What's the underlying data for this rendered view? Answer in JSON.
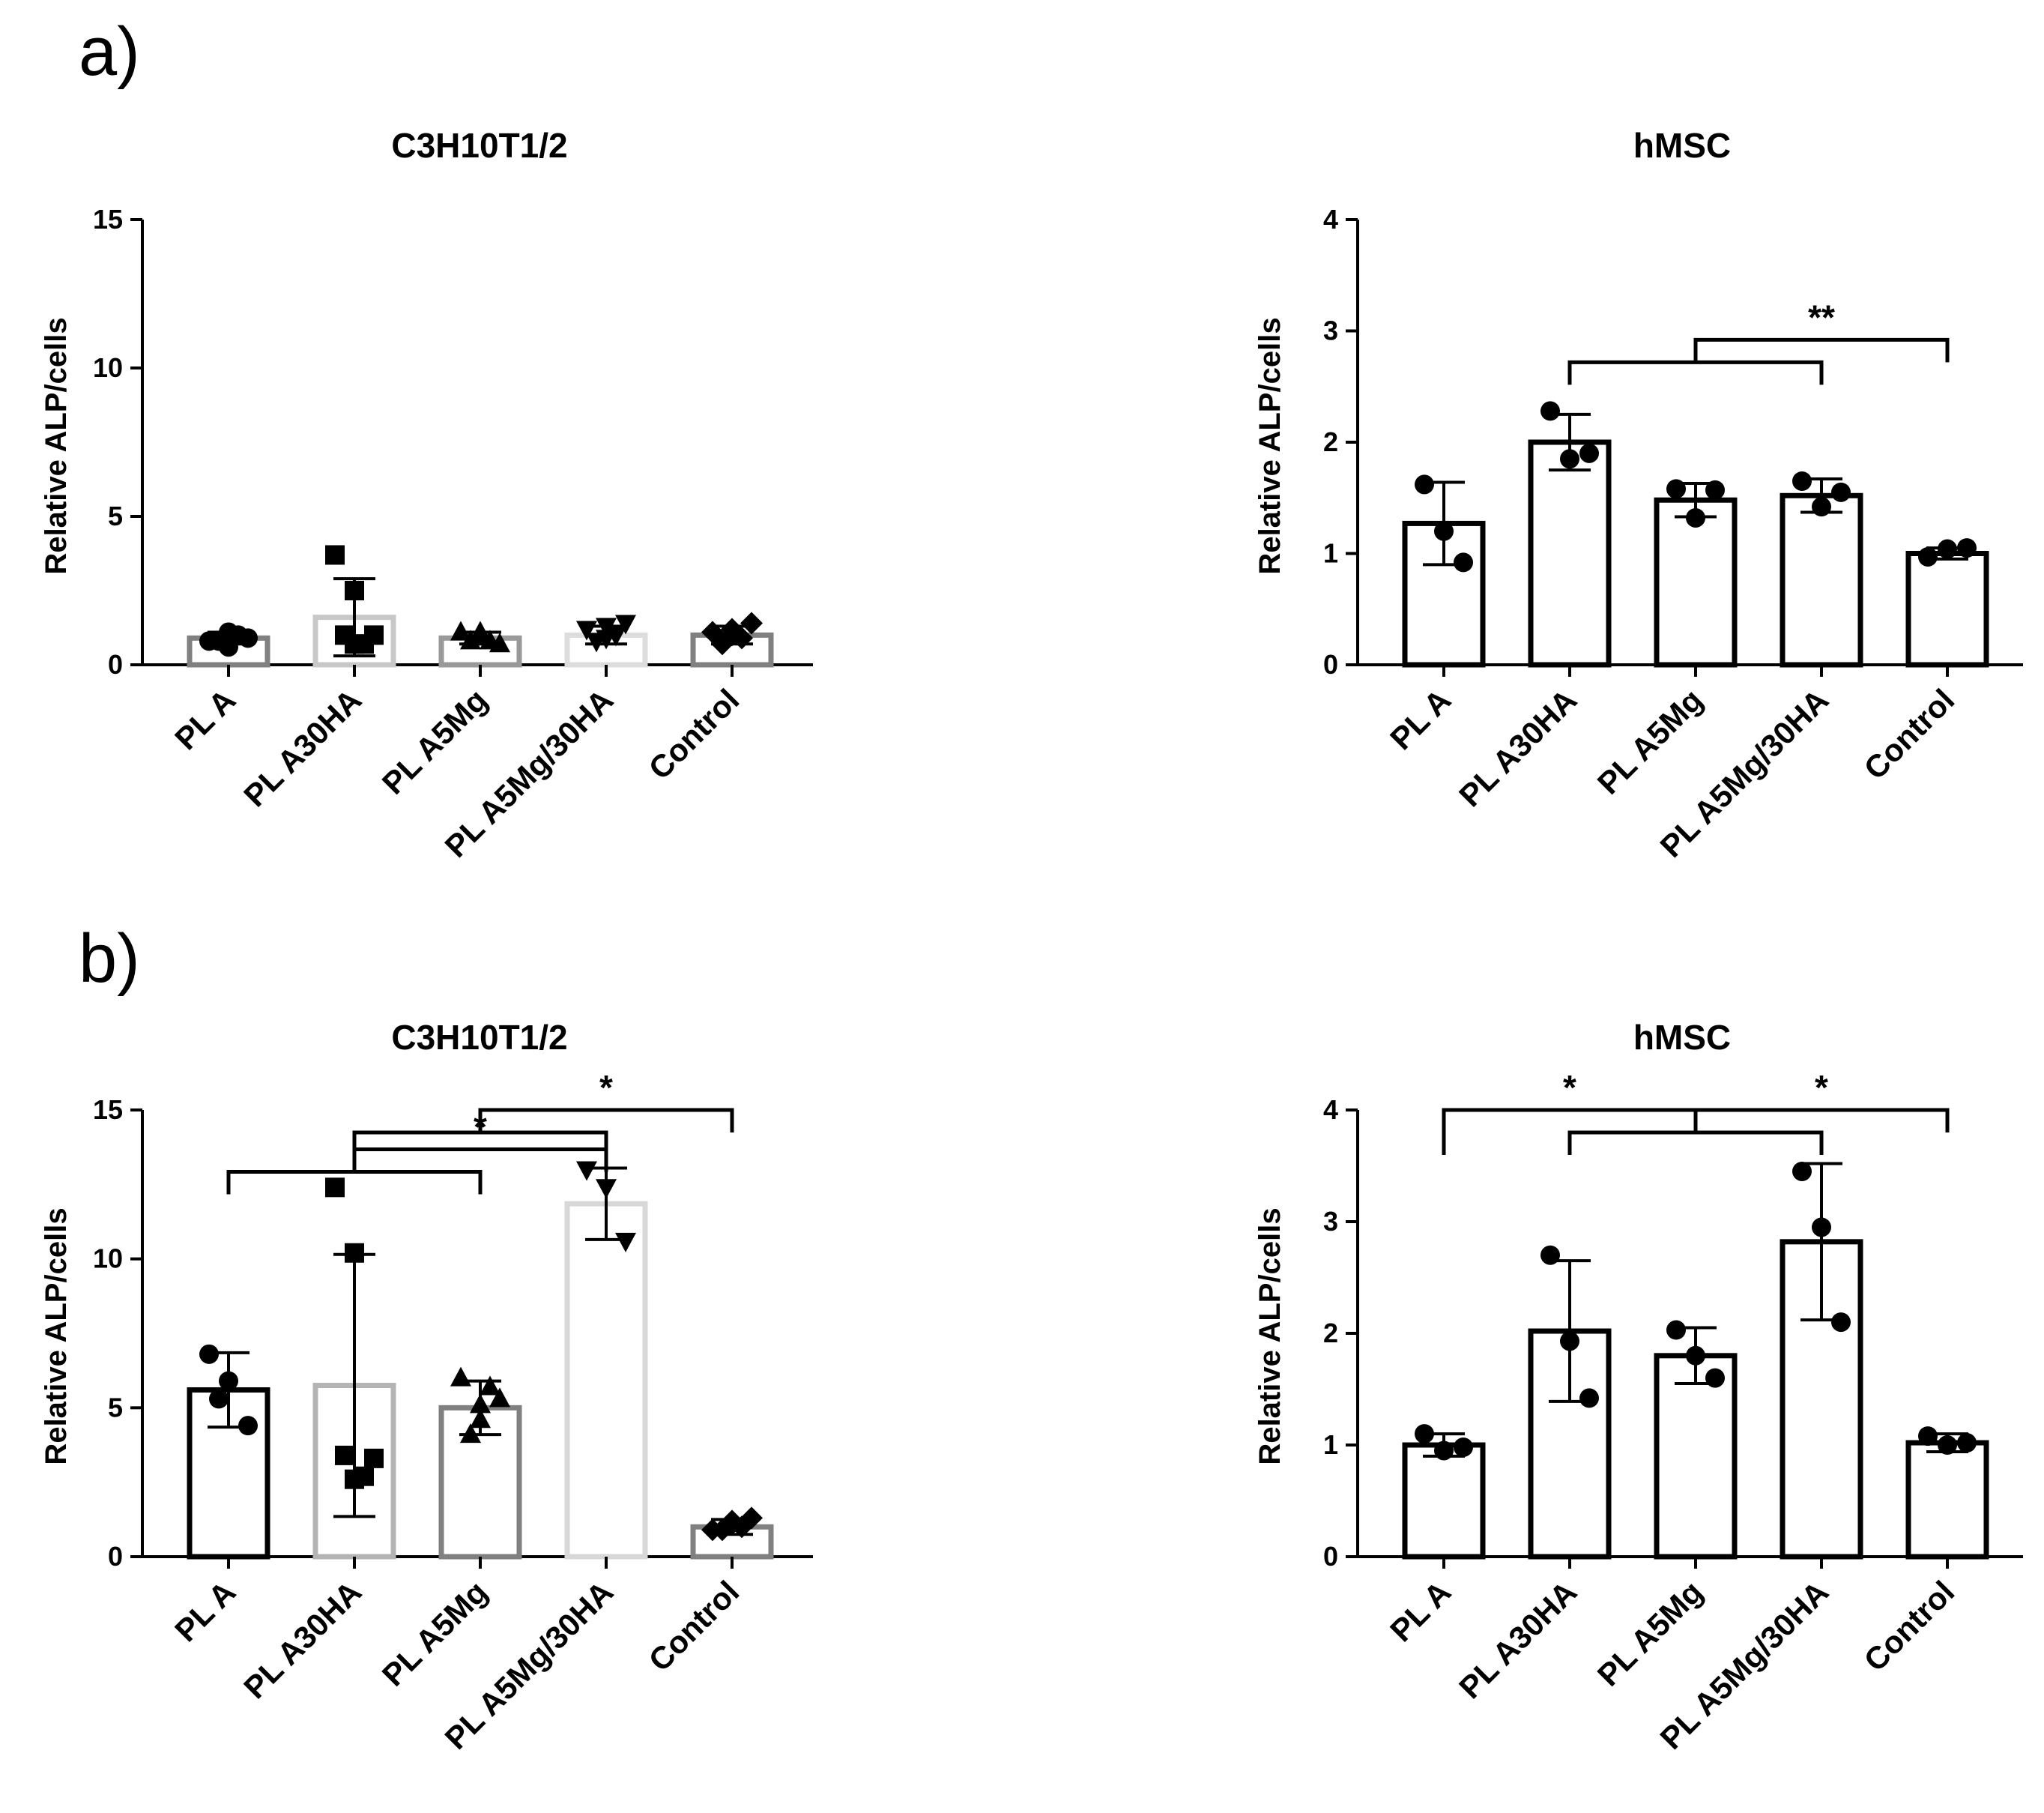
{
  "panels": [
    {
      "label": "a)"
    },
    {
      "label": "b)"
    }
  ],
  "chart_data": [
    {
      "panel": "a)",
      "type": "bar",
      "title": "C3H10T1/2",
      "ylabel": "Relative ALP/cells",
      "xlabel": "",
      "ylim": [
        0,
        15
      ],
      "yticks": [
        0,
        5,
        10,
        15
      ],
      "categories": [
        "PL A",
        "PL A30HA",
        "PL A5Mg",
        "PL A5Mg/30HA",
        "Control"
      ],
      "bar_colors": [
        "#808080",
        "#c8c8c8",
        "#999999",
        "#dddddd",
        "#808080"
      ],
      "markers": [
        "circle",
        "square",
        "triangle-up",
        "triangle-down",
        "diamond"
      ],
      "values": [
        0.9,
        1.6,
        0.9,
        1.0,
        1.0
      ],
      "errors": [
        0.2,
        1.3,
        0.2,
        0.3,
        0.3
      ],
      "points": [
        [
          0.8,
          1.1,
          0.9,
          0.8,
          1.0,
          0.6
        ],
        [
          3.7,
          2.5,
          1.0,
          1.0,
          0.7,
          0.7
        ],
        [
          1.1,
          1.0,
          0.7,
          0.8,
          0.8,
          1.1
        ],
        [
          1.2,
          1.3,
          1.4,
          0.8,
          1.0,
          0.9
        ],
        [
          1.1,
          1.2,
          1.4,
          0.7,
          0.9,
          1.0
        ]
      ],
      "significance": []
    },
    {
      "panel": "a)",
      "type": "bar",
      "title": "hMSC",
      "ylabel": "Relative ALP/cells",
      "xlabel": "",
      "ylim": [
        0,
        4
      ],
      "yticks": [
        0,
        1,
        2,
        3,
        4
      ],
      "categories": [
        "PL A",
        "PL A30HA",
        "PL A5Mg",
        "PL A5Mg/30HA",
        "Control"
      ],
      "bar_colors": [
        "#000000",
        "#000000",
        "#000000",
        "#000000",
        "#000000"
      ],
      "markers": [
        "circle",
        "circle",
        "circle",
        "circle",
        "circle"
      ],
      "values": [
        1.27,
        2.0,
        1.48,
        1.52,
        1.0
      ],
      "errors": [
        0.37,
        0.25,
        0.15,
        0.15,
        0.05
      ],
      "points": [
        [
          1.62,
          1.2,
          0.92
        ],
        [
          2.28,
          1.85,
          1.9
        ],
        [
          1.58,
          1.32,
          1.57
        ],
        [
          1.65,
          1.42,
          1.55
        ],
        [
          0.97,
          1.04,
          1.05
        ]
      ],
      "significance": [
        {
          "label": "**",
          "from": [
            1,
            3
          ],
          "to": [
            4,
            4
          ]
        }
      ]
    },
    {
      "panel": "b)",
      "type": "bar",
      "title": "C3H10T1/2",
      "ylabel": "Relative ALP/cells",
      "xlabel": "",
      "ylim": [
        0,
        15
      ],
      "yticks": [
        0,
        5,
        10,
        15
      ],
      "categories": [
        "PL A",
        "PL A30HA",
        "PL A5Mg",
        "PL A5Mg/30HA",
        "Control"
      ],
      "bar_colors": [
        "#000000",
        "#b4b4b4",
        "#808080",
        "#d8d8d8",
        "#808080"
      ],
      "markers": [
        "circle",
        "square",
        "triangle-up",
        "triangle-down",
        "diamond"
      ],
      "values": [
        5.6,
        5.75,
        5.0,
        11.85,
        1.0
      ],
      "errors": [
        1.25,
        4.4,
        0.9,
        1.2,
        0.25
      ],
      "points": [
        [
          6.8,
          5.9,
          4.4,
          5.3
        ],
        [
          12.4,
          10.2,
          3.3,
          3.4,
          2.7,
          2.6
        ],
        [
          6.0,
          5.1,
          5.3,
          4.1,
          5.7,
          4.6
        ],
        [
          13.0,
          12.4,
          10.6
        ],
        [
          0.9,
          1.2,
          1.3,
          0.9,
          1.0,
          1.1
        ]
      ],
      "significance": [
        {
          "label": "*",
          "from": [
            0,
            2
          ],
          "to": [
            3,
            3
          ]
        },
        {
          "label": "*",
          "from": [
            1,
            3
          ],
          "to": [
            4,
            4
          ]
        }
      ]
    },
    {
      "panel": "b)",
      "type": "bar",
      "title": "hMSC",
      "ylabel": "Relative ALP/cells",
      "xlabel": "",
      "ylim": [
        0,
        4
      ],
      "yticks": [
        0,
        1,
        2,
        3,
        4
      ],
      "categories": [
        "PL A",
        "PL A30HA",
        "PL A5Mg",
        "PL A5Mg/30HA",
        "Control"
      ],
      "bar_colors": [
        "#000000",
        "#000000",
        "#000000",
        "#000000",
        "#000000"
      ],
      "markers": [
        "circle",
        "circle",
        "circle",
        "circle",
        "circle"
      ],
      "values": [
        1.0,
        2.02,
        1.8,
        2.82,
        1.02
      ],
      "errors": [
        0.1,
        0.63,
        0.25,
        0.7,
        0.08
      ],
      "points": [
        [
          1.1,
          0.95,
          0.98
        ],
        [
          2.7,
          1.93,
          1.42
        ],
        [
          2.03,
          1.8,
          1.6
        ],
        [
          3.45,
          2.95,
          2.1
        ],
        [
          1.08,
          1.0,
          1.02
        ]
      ],
      "significance": [
        {
          "label": "*",
          "from": [
            0,
            0
          ],
          "to": [
            1,
            3
          ]
        },
        {
          "label": "*",
          "from": [
            1,
            3
          ],
          "to": [
            4,
            4
          ]
        }
      ]
    }
  ]
}
